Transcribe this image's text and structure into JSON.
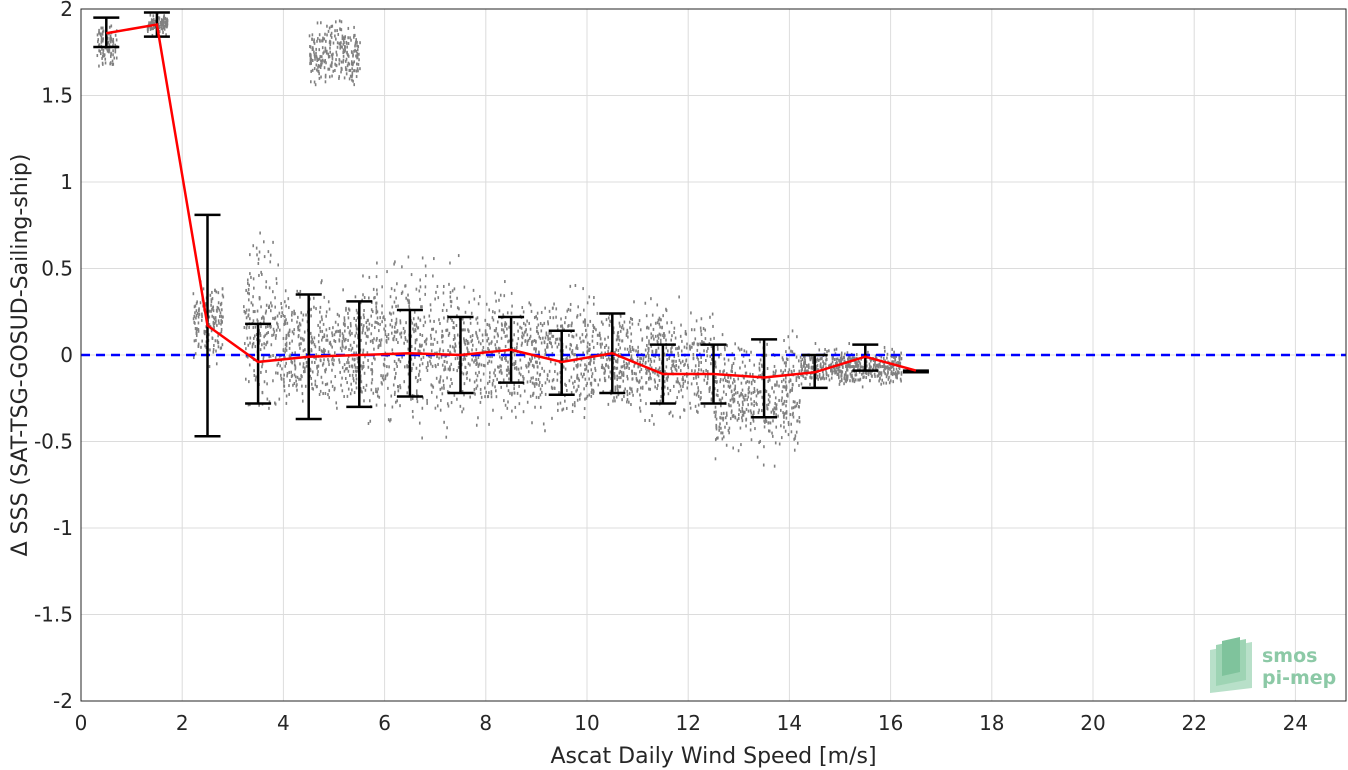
{
  "chart_data": {
    "type": "scatter",
    "xlabel": "Ascat Daily Wind Speed [m/s]",
    "ylabel": "Δ SSS (SAT-TSG-GOSUD-Sailing-ship)",
    "xlim": [
      0,
      25
    ],
    "ylim": [
      -2,
      2
    ],
    "xticks": [
      0,
      2,
      4,
      6,
      8,
      10,
      12,
      14,
      16,
      18,
      20,
      22,
      24
    ],
    "yticks": [
      -2,
      -1.5,
      -1,
      -0.5,
      0,
      0.5,
      1,
      1.5,
      2
    ],
    "ytick_labels": [
      "-2",
      "-1.5",
      "-1",
      "-0.5",
      "0",
      "0.5",
      "1",
      "1.5",
      "2"
    ],
    "grid": true,
    "reference_line": {
      "y": 0,
      "style": "dashed",
      "color": "#0000ff"
    },
    "colors": {
      "scatter": "#808080",
      "mean_line": "#ff0000",
      "error_bars": "#000000",
      "reference": "#0000ff"
    },
    "binned_stats": {
      "x": [
        0.5,
        1.5,
        2.5,
        3.5,
        4.5,
        5.5,
        6.5,
        7.5,
        8.5,
        9.5,
        10.5,
        11.5,
        12.5,
        13.5,
        14.5,
        15.5,
        16.5
      ],
      "mean": [
        1.86,
        1.91,
        0.17,
        -0.04,
        -0.01,
        0.0,
        0.01,
        0.0,
        0.03,
        -0.04,
        0.01,
        -0.11,
        -0.11,
        -0.13,
        -0.1,
        -0.01,
        -0.09
      ],
      "lower": [
        1.78,
        1.84,
        -0.47,
        -0.28,
        -0.37,
        -0.3,
        -0.24,
        -0.22,
        -0.16,
        -0.23,
        -0.22,
        -0.28,
        -0.28,
        -0.36,
        -0.19,
        -0.09,
        -0.1
      ],
      "upper": [
        1.95,
        1.98,
        0.81,
        0.18,
        0.35,
        0.31,
        0.26,
        0.22,
        0.22,
        0.14,
        0.24,
        0.06,
        0.06,
        0.09,
        0.0,
        0.06,
        -0.09
      ]
    },
    "scatter_clusters": [
      {
        "x": [
          0.3,
          0.7
        ],
        "y": [
          1.64,
          1.95
        ]
      },
      {
        "x": [
          1.3,
          1.7
        ],
        "y": [
          1.84,
          2.0
        ]
      },
      {
        "x": [
          2.2,
          2.8
        ],
        "y": [
          -0.1,
          0.5
        ]
      },
      {
        "x": [
          3.2,
          3.9
        ],
        "y": [
          -0.45,
          0.8
        ]
      },
      {
        "x": [
          3.9,
          5.5
        ],
        "y": [
          -0.45,
          0.5
        ]
      },
      {
        "x": [
          4.5,
          5.5
        ],
        "y": [
          1.5,
          2.0
        ]
      },
      {
        "x": [
          5.5,
          7.5
        ],
        "y": [
          -0.55,
          0.7
        ]
      },
      {
        "x": [
          7.5,
          10.0
        ],
        "y": [
          -0.5,
          0.5
        ]
      },
      {
        "x": [
          10.0,
          12.5
        ],
        "y": [
          -0.45,
          0.4
        ]
      },
      {
        "x": [
          12.5,
          14.2
        ],
        "y": [
          -0.66,
          0.2
        ]
      },
      {
        "x": [
          14.2,
          16.2
        ],
        "y": [
          -0.2,
          0.08
        ]
      }
    ]
  },
  "logo": {
    "line1": "smos",
    "line2": "pi-mep"
  }
}
